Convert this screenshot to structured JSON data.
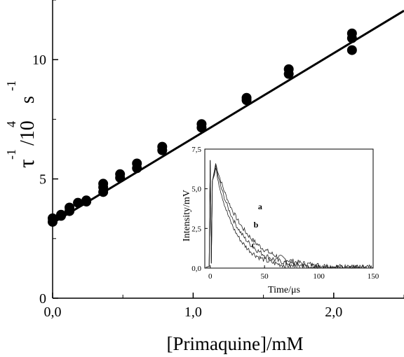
{
  "chart_data": [
    {
      "type": "scatter",
      "xlabel": "[Primaquine]/mM",
      "ylabel": {
        "base": "τ",
        "base_sup": "-1",
        "unit": "/10",
        "unit_sup": "4",
        "unit2": "s",
        "unit2_sup": "-1"
      },
      "xlim": [
        0,
        2.5
      ],
      "ylim": [
        0,
        12.5
      ],
      "xticks": [
        {
          "v": 0,
          "label": "0,0"
        },
        {
          "v": 1,
          "label": "1,0"
        },
        {
          "v": 2,
          "label": "2,0"
        }
      ],
      "yticks": [
        {
          "v": 0,
          "label": "0"
        },
        {
          "v": 5,
          "label": "5"
        },
        {
          "v": 10,
          "label": "10"
        }
      ],
      "points": [
        [
          0.0,
          3.2
        ],
        [
          0.0,
          3.35
        ],
        [
          0.06,
          3.45
        ],
        [
          0.06,
          3.5
        ],
        [
          0.12,
          3.65
        ],
        [
          0.12,
          3.8
        ],
        [
          0.18,
          4.0
        ],
        [
          0.24,
          4.05
        ],
        [
          0.24,
          4.1
        ],
        [
          0.36,
          4.45
        ],
        [
          0.36,
          4.65
        ],
        [
          0.36,
          4.8
        ],
        [
          0.48,
          5.05
        ],
        [
          0.48,
          5.2
        ],
        [
          0.6,
          5.45
        ],
        [
          0.6,
          5.65
        ],
        [
          0.78,
          6.2
        ],
        [
          0.78,
          6.35
        ],
        [
          1.06,
          7.15
        ],
        [
          1.06,
          7.3
        ],
        [
          1.38,
          8.3
        ],
        [
          1.38,
          8.4
        ],
        [
          1.68,
          9.4
        ],
        [
          1.68,
          9.6
        ],
        [
          2.13,
          10.4
        ],
        [
          2.13,
          10.9
        ],
        [
          2.13,
          11.1
        ]
      ],
      "fit_line": {
        "x": [
          0,
          2.5
        ],
        "y": [
          3.15,
          12.05
        ]
      }
    },
    {
      "type": "line",
      "xlabel": "Time/μs",
      "ylabel": "Intensity/mV",
      "xlim": [
        -5,
        150
      ],
      "ylim": [
        0,
        7.5
      ],
      "xticks": [
        {
          "v": 0,
          "label": "0"
        },
        {
          "v": 50,
          "label": "50"
        },
        {
          "v": 100,
          "label": "100"
        },
        {
          "v": 150,
          "label": "150"
        }
      ],
      "yticks": [
        {
          "v": 0,
          "label": "0,0"
        },
        {
          "v": 2.5,
          "label": "2,5"
        },
        {
          "v": 5,
          "label": "5,0"
        },
        {
          "v": 7.5,
          "label": "7,5"
        }
      ],
      "series": [
        {
          "name": "a",
          "peak": 6.6,
          "tau": 26
        },
        {
          "name": "b",
          "peak": 6.4,
          "tau": 22
        },
        {
          "name": "c",
          "peak": 6.3,
          "tau": 18
        }
      ],
      "curve_labels": [
        {
          "text": "a",
          "x": 44,
          "y": 3.7
        },
        {
          "text": "b",
          "x": 40,
          "y": 2.55
        },
        {
          "text": "c",
          "x": 38,
          "y": 1.3
        }
      ]
    }
  ]
}
